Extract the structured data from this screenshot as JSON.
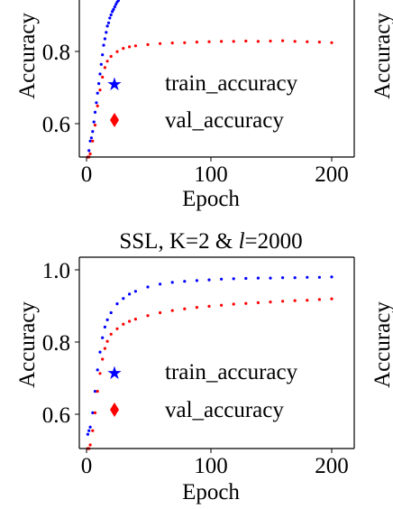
{
  "chart_data": [
    {
      "type": "scatter",
      "title": "",
      "xlabel": "Epoch",
      "ylabel": "Accuracy",
      "xlim": [
        -5,
        207
      ],
      "ylim": [
        0.49,
        1.05
      ],
      "xticks": [
        0,
        100,
        200
      ],
      "xtick_labels": [
        "0",
        "100",
        "200"
      ],
      "yticks": [
        0.6,
        0.8
      ],
      "ytick_labels": [
        "0.6",
        "0.8"
      ],
      "legend": "lower-right",
      "grid": false,
      "series": [
        {
          "name": "train_accuracy",
          "marker": "star",
          "color": "#0000ff",
          "x": [
            1,
            2,
            3,
            4,
            5,
            6,
            7,
            8,
            9,
            10,
            11,
            12,
            13,
            14,
            15,
            16,
            17,
            18,
            19,
            20,
            21,
            22,
            23,
            24,
            25,
            26,
            27
          ],
          "y": [
            0.5,
            0.52,
            0.55,
            0.56,
            0.58,
            0.61,
            0.64,
            0.67,
            0.7,
            0.73,
            0.76,
            0.79,
            0.82,
            0.85,
            0.87,
            0.89,
            0.91,
            0.92,
            0.935,
            0.945,
            0.955,
            0.962,
            0.97,
            0.978,
            0.985,
            0.99,
            0.995
          ]
        },
        {
          "name": "val_accuracy",
          "marker": "diamond",
          "color": "#ff0000",
          "x": [
            1,
            2,
            3,
            5,
            7,
            9,
            11,
            13,
            15,
            17,
            20,
            25,
            30,
            35,
            40,
            50,
            60,
            70,
            80,
            90,
            100,
            110,
            120,
            130,
            140,
            150,
            160,
            170,
            180,
            190,
            200
          ],
          "y": [
            0.5,
            0.5,
            0.51,
            0.55,
            0.6,
            0.66,
            0.71,
            0.75,
            0.78,
            0.8,
            0.815,
            0.83,
            0.84,
            0.845,
            0.848,
            0.852,
            0.855,
            0.857,
            0.858,
            0.86,
            0.861,
            0.862,
            0.862,
            0.863,
            0.862,
            0.863,
            0.864,
            0.862,
            0.861,
            0.86,
            0.858
          ]
        }
      ]
    },
    {
      "type": "scatter",
      "title": "SSL, K=2 & l=2000",
      "title_prefix": "SSL, K=2 & ",
      "title_italic": "l",
      "title_suffix": "=2000",
      "xlabel": "Epoch",
      "ylabel": "Accuracy",
      "xlim": [
        -5,
        207
      ],
      "ylim": [
        0.49,
        1.05
      ],
      "xticks": [
        0,
        100,
        200
      ],
      "xtick_labels": [
        "0",
        "100",
        "200"
      ],
      "yticks": [
        0.6,
        0.8,
        1.0
      ],
      "ytick_labels": [
        "0.6",
        "0.8",
        "1.0"
      ],
      "legend": "lower-right",
      "grid": false,
      "series": [
        {
          "name": "train_accuracy",
          "marker": "star",
          "color": "#0000ff",
          "x": [
            1,
            2,
            3,
            5,
            7,
            9,
            11,
            13,
            15,
            17,
            20,
            25,
            30,
            35,
            40,
            50,
            60,
            70,
            80,
            90,
            100,
            110,
            120,
            130,
            140,
            150,
            160,
            170,
            180,
            190,
            200
          ],
          "y": [
            0.54,
            0.55,
            0.56,
            0.6,
            0.66,
            0.72,
            0.77,
            0.81,
            0.84,
            0.86,
            0.88,
            0.905,
            0.92,
            0.932,
            0.94,
            0.952,
            0.96,
            0.965,
            0.968,
            0.97,
            0.972,
            0.974,
            0.975,
            0.976,
            0.977,
            0.977,
            0.978,
            0.978,
            0.979,
            0.979,
            0.98
          ]
        },
        {
          "name": "val_accuracy",
          "marker": "diamond",
          "color": "#ff0000",
          "x": [
            1,
            2,
            3,
            5,
            7,
            9,
            11,
            13,
            15,
            17,
            20,
            25,
            30,
            35,
            40,
            50,
            60,
            70,
            80,
            90,
            100,
            110,
            120,
            130,
            140,
            150,
            160,
            170,
            180,
            190,
            200
          ],
          "y": [
            0.5,
            0.5,
            0.51,
            0.55,
            0.6,
            0.66,
            0.71,
            0.75,
            0.78,
            0.8,
            0.82,
            0.835,
            0.848,
            0.856,
            0.862,
            0.872,
            0.88,
            0.886,
            0.891,
            0.895,
            0.898,
            0.901,
            0.904,
            0.906,
            0.908,
            0.91,
            0.912,
            0.914,
            0.915,
            0.917,
            0.919
          ]
        }
      ]
    }
  ],
  "side_panels": [
    {
      "ylabel": "Accuracy"
    },
    {
      "ylabel": "Accuracy"
    }
  ]
}
